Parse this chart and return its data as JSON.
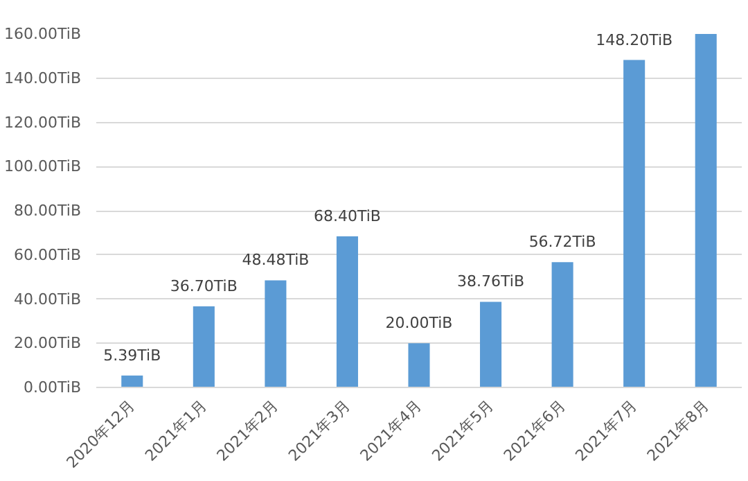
{
  "chart_data": {
    "type": "bar",
    "categories": [
      "2020年12月",
      "2021年1月",
      "2021年2月",
      "2021年3月",
      "2021年4月",
      "2021年5月",
      "2021年6月",
      "2021年7月",
      "2021年8月"
    ],
    "values": [
      5.39,
      36.7,
      48.48,
      68.4,
      20.0,
      38.76,
      56.72,
      148.2,
      160
    ],
    "value_labels": [
      "5.39TiB",
      "36.70TiB",
      "48.48TiB",
      "68.40TiB",
      "20.00TiB",
      "38.76TiB",
      "56.72TiB",
      "148.20TiB",
      null
    ],
    "color": "#5b9bd5",
    "ylim": [
      0,
      160
    ],
    "yticks": [
      {
        "value": 0,
        "label": "0.00TiB"
      },
      {
        "value": 20,
        "label": "20.00TiB"
      },
      {
        "value": 40,
        "label": "40.00TiB"
      },
      {
        "value": 60,
        "label": "60.00TiB"
      },
      {
        "value": 80,
        "label": "80.00TiB"
      },
      {
        "value": 100,
        "label": "100.00TiB"
      },
      {
        "value": 120,
        "label": "120.00TiB"
      },
      {
        "value": 140,
        "label": "140.00TiB"
      },
      {
        "value": 160,
        "label": "160.00TiB"
      }
    ],
    "grid": "y"
  }
}
